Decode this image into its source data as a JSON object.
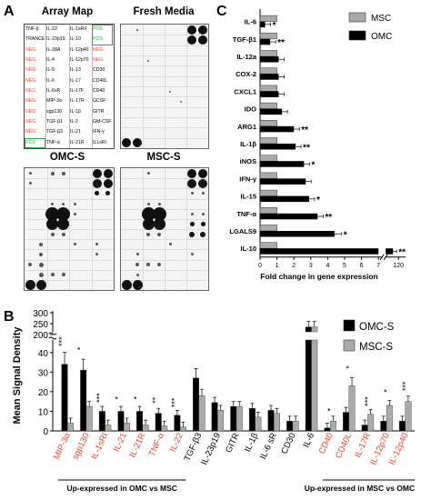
{
  "panel_labels": {
    "a": "A",
    "b": "B",
    "c": "C"
  },
  "arrays": {
    "array_map_title": "Array Map",
    "fresh_title": "Fresh Media",
    "omc_title": "OMC-S",
    "msc_title": "MSC-S",
    "map_cells": [
      [
        "TNF-β",
        "IL-22",
        "IL-1sRII",
        "POS"
      ],
      [
        "TRANCE",
        "IL-23p19",
        "IL-10",
        "POS"
      ],
      [
        "NEG",
        "IL-28A",
        "IL-12p40",
        "NEG"
      ],
      [
        "NEG",
        "IL-4",
        "IL-12p70",
        "NEG"
      ],
      [
        "NEG",
        "IL-5",
        "IL-13",
        "CD30"
      ],
      [
        "NEG",
        "IL-6",
        "IL-17",
        "CD40L"
      ],
      [
        "NEG",
        "IL-6sR",
        "IL-17F",
        "CD40"
      ],
      [
        "NEG",
        "MIP-3α",
        "IL-17R",
        "GCSF"
      ],
      [
        "NEG",
        "sgp130",
        "IL-1β",
        "GITR"
      ],
      [
        "NEG",
        "TGF-β1",
        "IL-2",
        "GM-CSF"
      ],
      [
        "NEG",
        "TGF-β3",
        "IL-21",
        "IFN-γ"
      ],
      [
        "POS",
        "TNF-α",
        "IL-21R",
        "IL1sRI"
      ]
    ],
    "colors": {
      "neg": "#e8442d",
      "pos": "#2ea84a"
    }
  },
  "chart_data": [
    {
      "type": "bar",
      "orientation": "horizontal",
      "categories": [
        "IL-6",
        "TGF-β1",
        "IL-12a",
        "COX-2",
        "CXCL1",
        "IDO",
        "ARG1",
        "IL-1β",
        "iNOS",
        "IFN-γ",
        "IL-15",
        "TNF-α",
        "LGALS9",
        "IL-10"
      ],
      "series": [
        {
          "name": "MSC",
          "color": "#aaaaaa",
          "values": [
            1,
            1,
            1,
            1,
            1,
            1,
            1,
            1,
            1,
            1,
            1,
            1,
            1,
            1
          ]
        },
        {
          "name": "OMC",
          "color": "#000000",
          "values": [
            0.3,
            0.6,
            1.1,
            1.1,
            1.1,
            1.3,
            2.0,
            2.1,
            2.6,
            2.7,
            2.9,
            3.4,
            4.4,
            96
          ]
        }
      ],
      "significance": [
        "*",
        "**",
        "",
        "",
        "",
        "",
        "**",
        "**",
        "*",
        "",
        "*",
        "**",
        "*",
        "**"
      ],
      "xlabel": "Fold change in gene expression",
      "xticks": [
        "0",
        "1",
        "2",
        "3",
        "4",
        "5",
        "6",
        "7",
        "120"
      ],
      "xlim": [
        0,
        7
      ],
      "axis_break": [
        7,
        120
      ],
      "legend": "top-right"
    },
    {
      "type": "bar",
      "categories": [
        "MIP-3α",
        "sgp130",
        "IL-1sRI",
        "IL-21",
        "IL-21R",
        "TNF-α",
        "IL-22",
        "TGF-β3",
        "IL-23p19",
        "GITR",
        "IL-1β",
        "IL-6 sR",
        "CD30",
        "IL-6",
        "CD40",
        "CD40L",
        "IL-17R",
        "IL-12p70",
        "IL-12p40"
      ],
      "series": [
        {
          "name": "OMC-S",
          "color": "#000000",
          "values": [
            34,
            31,
            10,
            10,
            10,
            9,
            8,
            27,
            14.5,
            12.5,
            11.5,
            10.5,
            5,
            235,
            1.5,
            9.5,
            3,
            5,
            5
          ]
        },
        {
          "name": "MSC-S",
          "color": "#aaaaaa",
          "values": [
            4,
            12.5,
            3,
            4,
            3,
            2.5,
            2,
            18,
            10.5,
            12.5,
            7,
            9,
            5,
            235,
            5,
            23,
            8.5,
            13,
            15
          ]
        }
      ],
      "significance": [
        "***",
        "*",
        "***",
        "*",
        "*",
        "**",
        "***",
        "",
        "",
        "",
        "",
        "",
        "",
        "",
        "*",
        "*",
        "***",
        "*",
        "***"
      ],
      "ylabel": "Mean Signal Density",
      "yticks_lower": [
        "0",
        "10",
        "20",
        "30",
        "40"
      ],
      "yticks_upper": [
        "200",
        "250",
        "300"
      ],
      "ylim_lower": [
        0,
        45
      ],
      "ylim_upper": [
        190,
        310
      ],
      "group_labels": [
        "Up-expressed in OMC vs MSC",
        "Up-expressed in MSC vs OMC"
      ],
      "legend": "top-right"
    }
  ]
}
